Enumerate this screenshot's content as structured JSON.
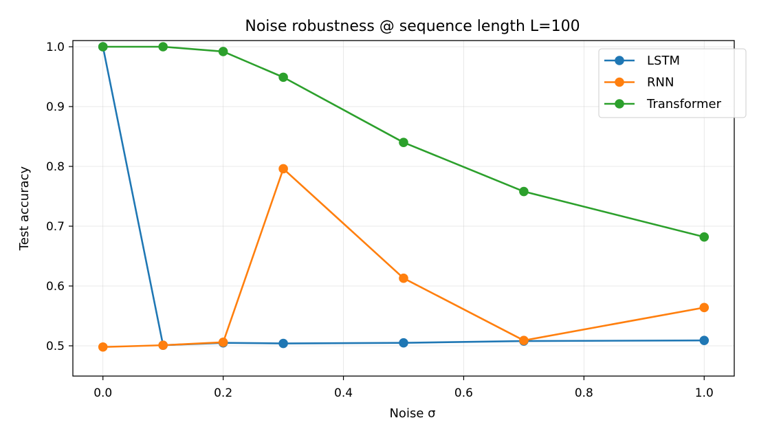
{
  "chart_data": {
    "type": "line",
    "title": "Noise robustness @ sequence length L=100",
    "xlabel": "Noise σ",
    "ylabel": "Test accuracy",
    "xlim": [
      -0.05,
      1.05
    ],
    "ylim": [
      0.45,
      1.0
    ],
    "xticks": [
      0.0,
      0.2,
      0.4,
      0.6,
      0.8,
      1.0
    ],
    "xtick_labels": [
      "0.0",
      "0.2",
      "0.4",
      "0.6",
      "0.8",
      "1.0"
    ],
    "yticks": [
      0.5,
      0.6,
      0.7,
      0.8,
      0.9,
      1.0
    ],
    "ytick_labels": [
      "0.5",
      "0.6",
      "0.7",
      "0.8",
      "0.9",
      "1.0"
    ],
    "grid": true,
    "legend_position": "top-right",
    "x": [
      0.0,
      0.1,
      0.2,
      0.3,
      0.5,
      0.7,
      1.0
    ],
    "series": [
      {
        "name": "LSTM",
        "color": "#1f77b4",
        "values": [
          1.0,
          0.501,
          0.505,
          0.504,
          0.505,
          0.508,
          0.509
        ]
      },
      {
        "name": "RNN",
        "color": "#ff7f0e",
        "values": [
          0.498,
          0.501,
          0.506,
          0.796,
          0.613,
          0.509,
          0.564
        ]
      },
      {
        "name": "Transformer",
        "color": "#2ca02c",
        "values": [
          1.0,
          1.0,
          0.992,
          0.949,
          0.84,
          0.758,
          0.682
        ]
      }
    ]
  }
}
